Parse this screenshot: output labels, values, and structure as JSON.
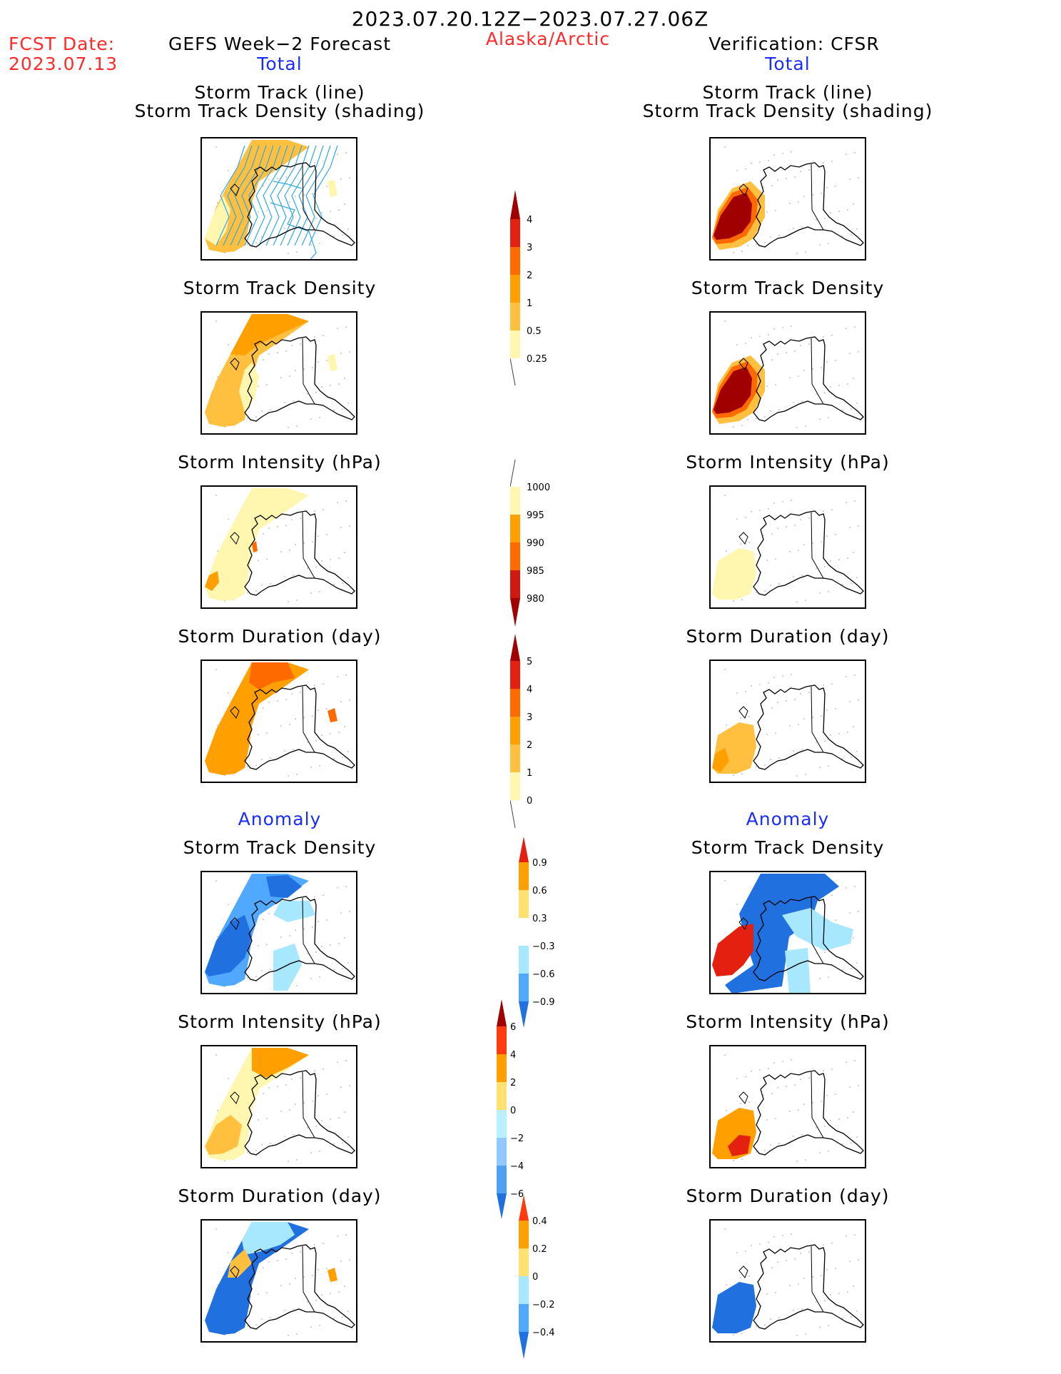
{
  "header": {
    "period": "2023.07.20.12Z−2023.07.27.06Z",
    "fcst_label": "FCST Date:",
    "fcst_date": "2023.07.13",
    "left_title": "GEFS Week−2 Forecast",
    "region": "Alaska/Arctic",
    "right_title": "Verification: CFSR",
    "total_left": "Total",
    "total_right": "Total",
    "anomaly_left": "Anomaly",
    "anomaly_right": "Anomaly"
  },
  "panel_titles": {
    "track_line": "Storm Track (line)",
    "track_shading": "Storm Track Density (shading)",
    "density": "Storm Track Density",
    "intensity": "Storm Intensity (hPa)",
    "duration": "Storm Duration (day)"
  },
  "colorbars": {
    "density_total": [
      "4",
      "3",
      "2",
      "1",
      "0.5",
      "0.25"
    ],
    "intensity_total": [
      "1000",
      "995",
      "990",
      "985",
      "980"
    ],
    "duration_total": [
      "5",
      "4",
      "3",
      "2",
      "1",
      "0"
    ],
    "density_anom": [
      "0.9",
      "0.6",
      "0.3",
      "−0.3",
      "−0.6",
      "−0.9"
    ],
    "intensity_anom": [
      "6",
      "4",
      "2",
      "0",
      "−2",
      "−4",
      "−6"
    ],
    "duration_anom": [
      "0.4",
      "0.2",
      "0",
      "−0.2",
      "−0.4"
    ]
  },
  "colors": {
    "title_red": "#ff2a2a",
    "title_blue": "#1a2cff",
    "pale_yellow": "#fff7b0",
    "light_orange": "#ffc040",
    "orange": "#ffa000",
    "dark_orange": "#ff6a00",
    "red": "#e42010",
    "dark_red": "#a00000",
    "light_blue": "#a8e8ff",
    "mid_blue": "#50a8ff",
    "blue": "#2070e0",
    "dark_blue": "#1450c8",
    "track_line": "#30a8e8"
  }
}
